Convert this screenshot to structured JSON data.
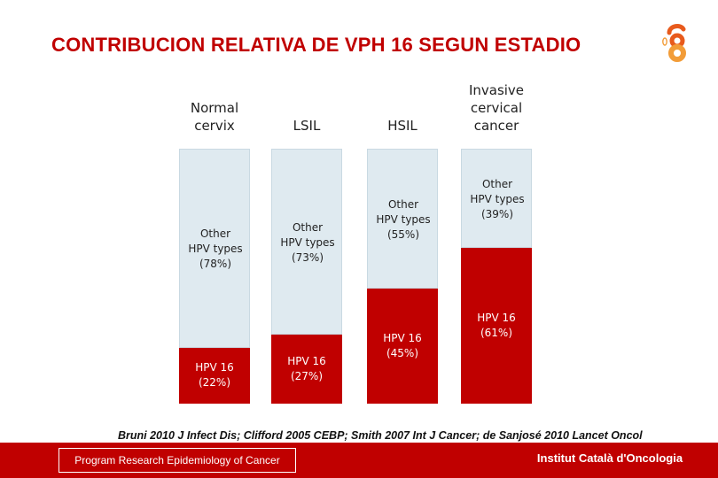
{
  "header": {
    "title": "CONTRIBUCION RELATIVA DE VPH 16 SEGUN ESTADIO"
  },
  "logo": {
    "icon": "ico-logo-icon",
    "colors": [
      "#e85a1c",
      "#f29c38"
    ]
  },
  "chart_data": {
    "type": "bar",
    "stacked": true,
    "normalized_to": 100,
    "categories": [
      "Normal cervix",
      "LSIL",
      "HSIL",
      "Invasive cervical cancer"
    ],
    "category_lines": [
      [
        "Normal",
        "cervix"
      ],
      [
        "LSIL"
      ],
      [
        "HSIL"
      ],
      [
        "Invasive",
        "cervical",
        "cancer"
      ]
    ],
    "series": [
      {
        "name": "HPV 16",
        "color": "#c00000",
        "values": [
          22,
          27,
          45,
          61
        ],
        "labels": [
          [
            "HPV 16",
            "(22%)"
          ],
          [
            "HPV 16",
            "(27%)"
          ],
          [
            "HPV 16",
            "(45%)"
          ],
          [
            "HPV 16",
            "(61%)"
          ]
        ]
      },
      {
        "name": "Other HPV types",
        "color": "#dfeaf0",
        "values": [
          78,
          73,
          55,
          39
        ],
        "labels": [
          [
            "Other",
            "HPV types",
            "(78%)"
          ],
          [
            "Other",
            "HPV types",
            "(73%)"
          ],
          [
            "Other",
            "HPV types",
            "(55%)"
          ],
          [
            "Other",
            "HPV types",
            "(39%)"
          ]
        ]
      }
    ],
    "ylim": [
      0,
      100
    ],
    "grid": false,
    "legend": "none"
  },
  "references": "Bruni 2010 J Infect Dis; Clifford  2005 CEBP;  Smith 2007 Int J Cancer; de Sanjosé 2010 Lancet Oncol",
  "footer": {
    "left": "Program Research Epidemiology of Cancer",
    "right": "Institut Català d'Oncologia",
    "color": "#c00000"
  }
}
